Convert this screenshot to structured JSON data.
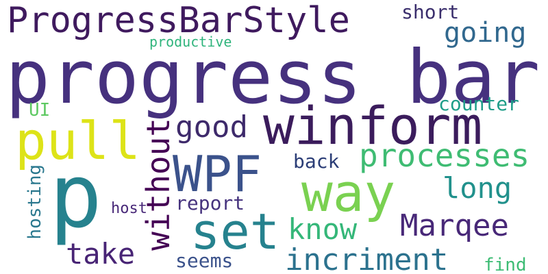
{
  "background": "#ffffff",
  "words": [
    {
      "text": "progress bar",
      "color": "#46317e"
    },
    {
      "text": "ProgressBarStyle",
      "color": "#3f1a5e"
    },
    {
      "text": "winform",
      "color": "#3b1c5c"
    },
    {
      "text": "p",
      "color": "#26828e"
    },
    {
      "text": "pull",
      "color": "#dde318"
    },
    {
      "text": "WPF",
      "color": "#3b528b"
    },
    {
      "text": "set",
      "color": "#26828e"
    },
    {
      "text": "way",
      "color": "#7ad151"
    },
    {
      "text": "without",
      "color": "#440154"
    },
    {
      "text": "processes",
      "color": "#3fbc73"
    },
    {
      "text": "incriment",
      "color": "#2c728e"
    },
    {
      "text": "Marqee",
      "color": "#482878"
    },
    {
      "text": "good",
      "color": "#3e2a6b"
    },
    {
      "text": "going",
      "color": "#31688e"
    },
    {
      "text": "short",
      "color": "#3b2f6d"
    },
    {
      "text": "long",
      "color": "#21918c"
    },
    {
      "text": "know",
      "color": "#35b779"
    },
    {
      "text": "take",
      "color": "#482475"
    },
    {
      "text": "report",
      "color": "#46337e"
    },
    {
      "text": "seems",
      "color": "#3b528b"
    },
    {
      "text": "counter",
      "color": "#1f9e89"
    },
    {
      "text": "back",
      "color": "#2c3e77"
    },
    {
      "text": "UI",
      "color": "#5ec962"
    },
    {
      "text": "productive",
      "color": "#2fb47c"
    },
    {
      "text": "hosting",
      "color": "#2a788e"
    },
    {
      "text": "host",
      "color": "#482878"
    },
    {
      "text": "find",
      "color": "#3dbc74"
    }
  ]
}
